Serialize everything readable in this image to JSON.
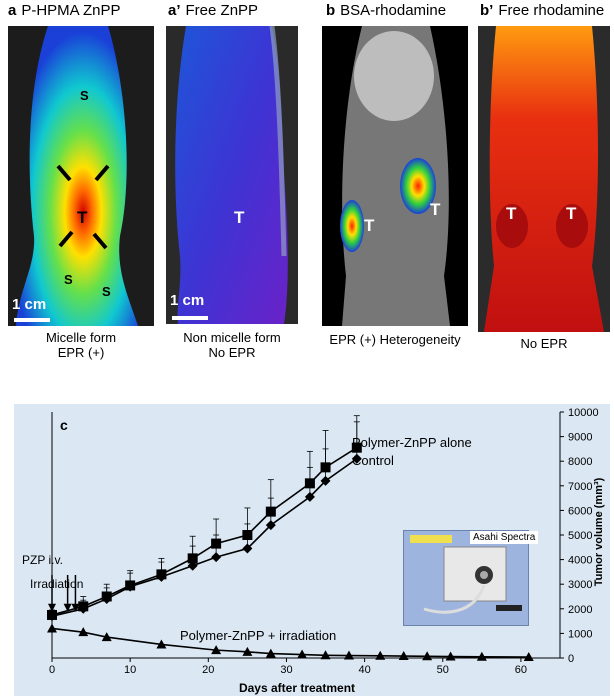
{
  "panels": [
    {
      "letter": "a",
      "title": "P-HPMA ZnPP",
      "caption_line1": "Micelle form",
      "caption_line2": "EPR (+)",
      "labels": {
        "s1": "S",
        "s2": "S",
        "s3": "S",
        "t": "T"
      },
      "scale": "1 cm"
    },
    {
      "letter": "a’",
      "title": "Free ZnPP",
      "caption_line1": "Non micelle form",
      "caption_line2": "No EPR",
      "labels": {
        "t": "T"
      },
      "scale": "1 cm"
    },
    {
      "letter": "b",
      "title": "BSA-rhodamine",
      "caption_line1": "EPR (+) Heterogeneity",
      "labels": {
        "t1": "T",
        "t2": "T"
      }
    },
    {
      "letter": "b’",
      "title": "Free rhodamine",
      "caption_line1": "No EPR",
      "labels": {
        "t1": "T",
        "t2": "T"
      }
    }
  ],
  "chart_panel_letter": "c",
  "inset_label": "Asahi Spectra",
  "colors": {
    "chart_bg": "#dbe8f3"
  },
  "chart_data": {
    "type": "line",
    "xlabel": "Days after treatment",
    "ylabel": "Tumor volume (mm³)",
    "xlim": [
      0,
      65
    ],
    "ylim": [
      0,
      10000
    ],
    "xticks": [
      0,
      10,
      20,
      30,
      40,
      50,
      60
    ],
    "yticks": [
      0,
      1000,
      2000,
      3000,
      4000,
      5000,
      6000,
      7000,
      8000,
      9000,
      10000
    ],
    "annotations": [
      "PZP i.v.",
      "Irradiation"
    ],
    "series": [
      {
        "name": "Polymer-ZnPP alone",
        "marker": "square",
        "x": [
          0,
          4,
          7,
          10,
          14,
          18,
          21,
          25,
          28,
          33,
          35,
          39
        ],
        "y": [
          1750,
          2100,
          2500,
          2950,
          3400,
          4050,
          4650,
          5000,
          5950,
          7100,
          7750,
          8550
        ],
        "err": [
          200,
          400,
          500,
          600,
          650,
          900,
          1000,
          1100,
          1300,
          1300,
          1500,
          1300
        ]
      },
      {
        "name": "Control",
        "marker": "diamond",
        "x": [
          0,
          4,
          7,
          10,
          14,
          18,
          21,
          25,
          28,
          33,
          35,
          39
        ],
        "y": [
          1700,
          2000,
          2400,
          2900,
          3300,
          3750,
          4100,
          4450,
          5400,
          6550,
          7200,
          8100
        ],
        "err": [
          200,
          350,
          450,
          550,
          600,
          800,
          900,
          1000,
          1100,
          1200,
          1300,
          1500
        ]
      },
      {
        "name": "Polymer-ZnPP + irradiation",
        "marker": "triangle",
        "x": [
          0,
          4,
          7,
          14,
          21,
          25,
          28,
          32,
          35,
          38,
          42,
          45,
          48,
          51,
          55,
          61
        ],
        "y": [
          1200,
          1050,
          850,
          550,
          320,
          250,
          180,
          140,
          110,
          100,
          90,
          80,
          70,
          60,
          50,
          40
        ],
        "err": [
          150,
          120,
          100,
          80,
          60,
          40,
          30,
          20,
          20,
          15,
          15,
          10,
          10,
          10,
          10,
          10
        ]
      }
    ]
  }
}
